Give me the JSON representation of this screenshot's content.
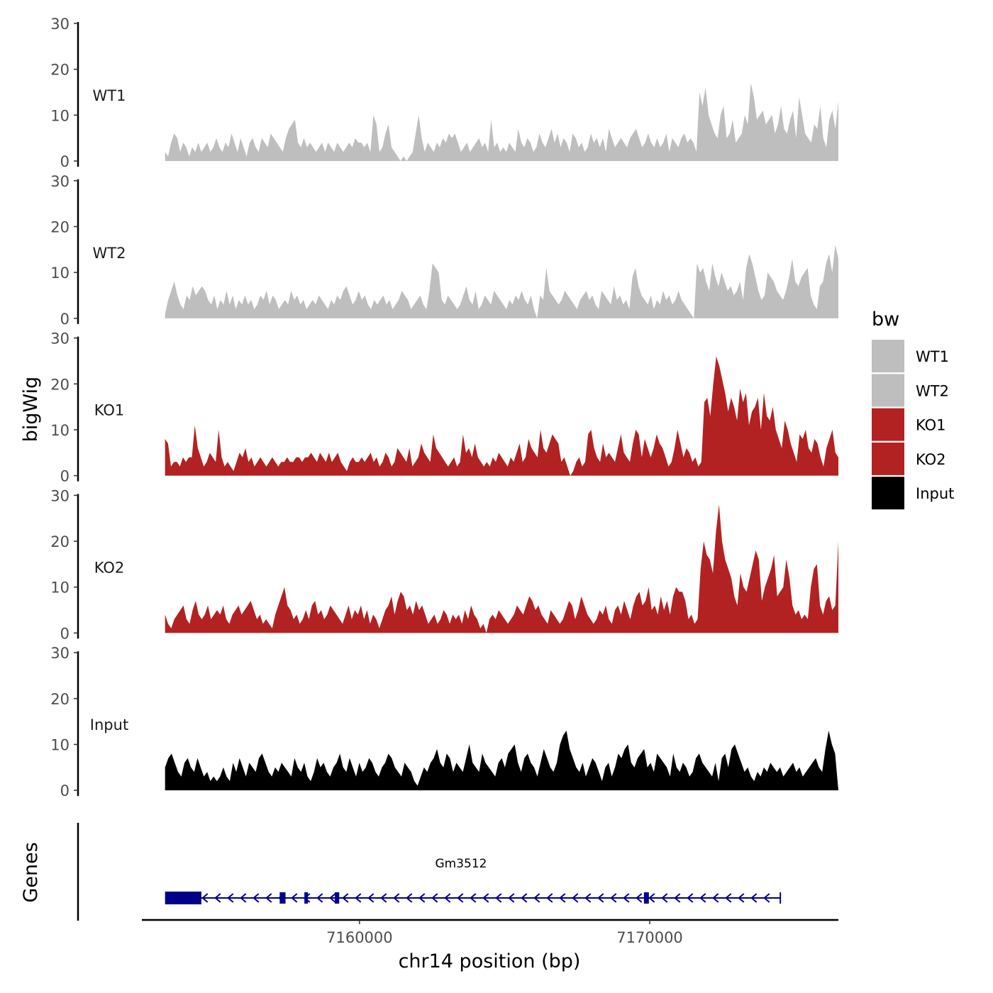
{
  "chart_data": {
    "type": "area",
    "ylabel": "bigWig",
    "xlabel": "chr14 position (bp)",
    "x_range": [
      7152500,
      7176500
    ],
    "x_ticks": [
      {
        "value": 7160000,
        "label": "7160000"
      },
      {
        "value": 7170000,
        "label": "7170000"
      }
    ],
    "ylim": [
      0,
      30
    ],
    "y_ticks": [
      {
        "value": 0,
        "label": "0"
      },
      {
        "value": 10,
        "label": "10"
      },
      {
        "value": 20,
        "label": "20"
      },
      {
        "value": 30,
        "label": "30"
      }
    ],
    "track_start": 7153300,
    "track_end": 7176500,
    "legend": {
      "title": "bw",
      "position": "right",
      "entries": [
        {
          "label": "WT1",
          "color": "#bebebe"
        },
        {
          "label": "WT2",
          "color": "#bebebe"
        },
        {
          "label": "KO1",
          "color": "#b22222"
        },
        {
          "label": "KO2",
          "color": "#b22222"
        },
        {
          "label": "Input",
          "color": "#000000"
        }
      ]
    },
    "series": [
      {
        "name": "WT1",
        "color": "#bebebe",
        "values": [
          2,
          1,
          4,
          6,
          5,
          2,
          4,
          3,
          1,
          3,
          2,
          4,
          2,
          3,
          4,
          2,
          3,
          5,
          3,
          2,
          4,
          3,
          6,
          4,
          2,
          5,
          3,
          1,
          4,
          5,
          3,
          2,
          5,
          4,
          3,
          6,
          5,
          4,
          3,
          2,
          5,
          7,
          8,
          9,
          4,
          3,
          5,
          3,
          4,
          3,
          2,
          3,
          4,
          2,
          4,
          3,
          2,
          4,
          3,
          2,
          3,
          4,
          3,
          5,
          4,
          4,
          3,
          4,
          2,
          10,
          8,
          2,
          3,
          6,
          8,
          3,
          2,
          1,
          0,
          1,
          0,
          1,
          2,
          6,
          10,
          5,
          2,
          4,
          3,
          2,
          4,
          3,
          5,
          4,
          6,
          5,
          6,
          4,
          2,
          3,
          4,
          2,
          3,
          4,
          5,
          3,
          4,
          2,
          9,
          3,
          4,
          2,
          3,
          2,
          4,
          3,
          2,
          7,
          4,
          3,
          5,
          4,
          2,
          3,
          6,
          4,
          3,
          5,
          7,
          4,
          6,
          3,
          5,
          4,
          2,
          6,
          5,
          3,
          4,
          2,
          3,
          6,
          4,
          5,
          3,
          5,
          2,
          7,
          5,
          3,
          4,
          5,
          4,
          3,
          5,
          6,
          7,
          5,
          3,
          4,
          6,
          4,
          3,
          5,
          3,
          4,
          6,
          2,
          5,
          4,
          3,
          5,
          6,
          4,
          5,
          4,
          2,
          15,
          12,
          16,
          10,
          8,
          6,
          5,
          10,
          12,
          5,
          6,
          9,
          4,
          5,
          6,
          10,
          8,
          17,
          14,
          9,
          10,
          11,
          8,
          9,
          10,
          6,
          8,
          12,
          7,
          6,
          9,
          11,
          5,
          14,
          10,
          6,
          5,
          4,
          8,
          7,
          12,
          5,
          3,
          9,
          11,
          7,
          13
        ]
      },
      {
        "name": "WT2",
        "color": "#bebebe",
        "values": [
          1,
          4,
          6,
          8,
          5,
          3,
          2,
          5,
          4,
          7,
          5,
          6,
          7,
          6,
          4,
          3,
          5,
          2,
          4,
          3,
          6,
          3,
          5,
          2,
          4,
          3,
          5,
          3,
          4,
          2,
          3,
          5,
          4,
          6,
          3,
          5,
          4,
          2,
          3,
          4,
          3,
          6,
          4,
          5,
          3,
          4,
          2,
          3,
          4,
          3,
          5,
          4,
          3,
          2,
          4,
          3,
          5,
          4,
          6,
          7,
          5,
          3,
          4,
          6,
          4,
          5,
          3,
          2,
          4,
          3,
          4,
          5,
          3,
          4,
          2,
          3,
          4,
          6,
          5,
          4,
          2,
          3,
          4,
          5,
          3,
          2,
          6,
          12,
          11,
          10,
          4,
          3,
          5,
          4,
          3,
          2,
          3,
          5,
          7,
          4,
          3,
          6,
          2,
          3,
          5,
          4,
          3,
          6,
          5,
          4,
          3,
          2,
          4,
          3,
          5,
          4,
          6,
          4,
          3,
          5,
          2,
          0,
          5,
          4,
          11,
          6,
          5,
          4,
          3,
          4,
          6,
          5,
          4,
          3,
          2,
          4,
          5,
          6,
          4,
          5,
          3,
          2,
          6,
          5,
          4,
          3,
          7,
          4,
          5,
          3,
          4,
          2,
          9,
          11,
          7,
          5,
          4,
          3,
          5,
          2,
          4,
          3,
          6,
          4,
          5,
          3,
          4,
          6,
          4,
          3,
          2,
          1,
          0,
          12,
          10,
          11,
          8,
          6,
          12,
          9,
          7,
          10,
          8,
          6,
          7,
          5,
          6,
          8,
          4,
          11,
          14,
          12,
          9,
          6,
          4,
          5,
          10,
          9,
          8,
          6,
          5,
          4,
          6,
          9,
          13,
          8,
          7,
          9,
          10,
          11,
          5,
          3,
          2,
          7,
          8,
          12,
          14,
          10,
          16,
          13
        ]
      },
      {
        "name": "KO1",
        "color": "#b22222",
        "values": [
          8,
          7,
          2,
          3,
          3,
          2,
          4,
          3,
          4,
          4,
          11,
          6,
          4,
          2,
          3,
          5,
          4,
          3,
          10,
          4,
          2,
          3,
          2,
          1,
          3,
          5,
          4,
          6,
          3,
          4,
          2,
          3,
          4,
          3,
          2,
          3,
          4,
          3,
          2,
          3,
          3,
          4,
          3,
          3,
          4,
          4,
          3,
          4,
          4,
          5,
          4,
          3,
          5,
          4,
          3,
          5,
          3,
          4,
          5,
          3,
          2,
          1,
          3,
          4,
          3,
          3,
          4,
          3,
          4,
          5,
          3,
          4,
          2,
          3,
          5,
          4,
          2,
          3,
          6,
          5,
          4,
          3,
          6,
          2,
          3,
          4,
          7,
          5,
          4,
          3,
          9,
          6,
          5,
          4,
          3,
          2,
          3,
          4,
          2,
          3,
          9,
          5,
          6,
          4,
          7,
          4,
          3,
          2,
          3,
          2,
          4,
          3,
          5,
          4,
          3,
          2,
          4,
          3,
          5,
          7,
          3,
          4,
          8,
          6,
          5,
          4,
          10,
          6,
          5,
          7,
          9,
          8,
          7,
          3,
          4,
          2,
          0,
          1,
          3,
          4,
          2,
          3,
          9,
          10,
          6,
          4,
          3,
          7,
          4,
          5,
          4,
          3,
          6,
          9,
          5,
          4,
          3,
          7,
          10,
          9,
          4,
          8,
          6,
          4,
          6,
          9,
          7,
          6,
          4,
          2,
          3,
          6,
          10,
          7,
          4,
          6,
          5,
          3,
          4,
          2,
          3,
          16,
          17,
          13,
          20,
          26,
          24,
          21,
          18,
          14,
          17,
          15,
          12,
          19,
          16,
          18,
          11,
          14,
          15,
          17,
          10,
          18,
          13,
          12,
          15,
          10,
          8,
          6,
          12,
          10,
          7,
          5,
          3,
          9,
          8,
          10,
          6,
          5,
          8,
          7,
          4,
          2,
          6,
          8,
          10,
          5,
          4
        ]
      },
      {
        "name": "KO2",
        "color": "#b22222",
        "values": [
          4,
          2,
          1,
          3,
          4,
          5,
          6,
          3,
          2,
          5,
          7,
          4,
          3,
          4,
          6,
          3,
          4,
          5,
          4,
          6,
          3,
          2,
          4,
          5,
          6,
          4,
          5,
          6,
          7,
          5,
          3,
          4,
          2,
          3,
          2,
          1,
          4,
          6,
          8,
          10,
          6,
          5,
          3,
          4,
          2,
          3,
          5,
          3,
          6,
          7,
          4,
          5,
          3,
          4,
          6,
          5,
          4,
          3,
          2,
          4,
          6,
          3,
          5,
          4,
          6,
          3,
          5,
          2,
          4,
          3,
          1,
          3,
          5,
          6,
          8,
          4,
          7,
          9,
          8,
          5,
          6,
          4,
          7,
          5,
          6,
          4,
          2,
          3,
          4,
          2,
          3,
          5,
          4,
          2,
          4,
          3,
          4,
          2,
          5,
          3,
          6,
          4,
          3,
          1,
          2,
          0,
          3,
          4,
          3,
          5,
          4,
          3,
          2,
          3,
          4,
          6,
          5,
          4,
          6,
          8,
          7,
          5,
          6,
          4,
          3,
          2,
          5,
          4,
          3,
          2,
          3,
          5,
          7,
          6,
          3,
          5,
          8,
          6,
          4,
          3,
          2,
          3,
          5,
          4,
          6,
          3,
          2,
          5,
          6,
          4,
          7,
          5,
          3,
          6,
          8,
          9,
          6,
          7,
          10,
          5,
          6,
          4,
          8,
          5,
          7,
          4,
          8,
          10,
          9,
          9,
          7,
          3,
          4,
          2,
          3,
          14,
          20,
          17,
          16,
          13,
          22,
          28,
          20,
          16,
          14,
          12,
          8,
          6,
          13,
          10,
          9,
          12,
          15,
          18,
          16,
          7,
          10,
          12,
          14,
          17,
          8,
          9,
          10,
          16,
          12,
          6,
          4,
          5,
          3,
          4,
          3,
          10,
          14,
          15,
          6,
          4,
          7,
          8,
          5,
          6,
          20
        ]
      },
      {
        "name": "Input",
        "color": "#000000",
        "values": [
          5,
          7,
          8,
          6,
          4,
          3,
          6,
          7,
          5,
          4,
          7,
          5,
          3,
          4,
          2,
          3,
          2,
          3,
          5,
          3,
          2,
          6,
          4,
          7,
          5,
          3,
          6,
          5,
          4,
          7,
          8,
          6,
          4,
          3,
          5,
          4,
          6,
          5,
          4,
          3,
          7,
          5,
          4,
          6,
          3,
          2,
          4,
          7,
          5,
          6,
          4,
          3,
          5,
          6,
          8,
          5,
          4,
          7,
          5,
          3,
          6,
          4,
          5,
          7,
          6,
          4,
          3,
          5,
          6,
          8,
          7,
          5,
          4,
          3,
          6,
          5,
          4,
          2,
          1,
          3,
          5,
          4,
          6,
          7,
          9,
          6,
          5,
          8,
          7,
          4,
          6,
          5,
          4,
          7,
          10,
          6,
          5,
          4,
          8,
          6,
          5,
          4,
          3,
          6,
          7,
          5,
          8,
          9,
          10,
          6,
          4,
          7,
          8,
          6,
          5,
          3,
          6,
          9,
          7,
          5,
          4,
          6,
          10,
          12,
          13,
          9,
          7,
          5,
          4,
          6,
          3,
          5,
          7,
          6,
          4,
          2,
          5,
          6,
          3,
          5,
          8,
          7,
          9,
          10,
          6,
          5,
          7,
          8,
          9,
          5,
          6,
          4,
          8,
          7,
          6,
          5,
          3,
          8,
          5,
          4,
          6,
          5,
          3,
          4,
          7,
          8,
          6,
          5,
          4,
          3,
          6,
          2,
          7,
          8,
          5,
          9,
          10,
          8,
          6,
          4,
          5,
          3,
          2,
          4,
          3,
          5,
          4,
          6,
          5,
          4,
          5,
          3,
          4,
          5,
          6,
          4,
          5,
          3,
          4,
          5,
          6,
          7,
          5,
          4,
          9,
          13,
          10,
          8,
          0
        ]
      }
    ],
    "genes_track": {
      "label": "Genes",
      "gene_name": "Gm3512",
      "strand": "-",
      "start": 7153300,
      "end": 7174500,
      "color": "#00008b",
      "exons": [
        {
          "start": 7153300,
          "end": 7154550
        },
        {
          "start": 7157250,
          "end": 7157450
        },
        {
          "start": 7158100,
          "end": 7158200
        },
        {
          "start": 7159150,
          "end": 7159300
        },
        {
          "start": 7169800,
          "end": 7169970
        }
      ]
    }
  }
}
